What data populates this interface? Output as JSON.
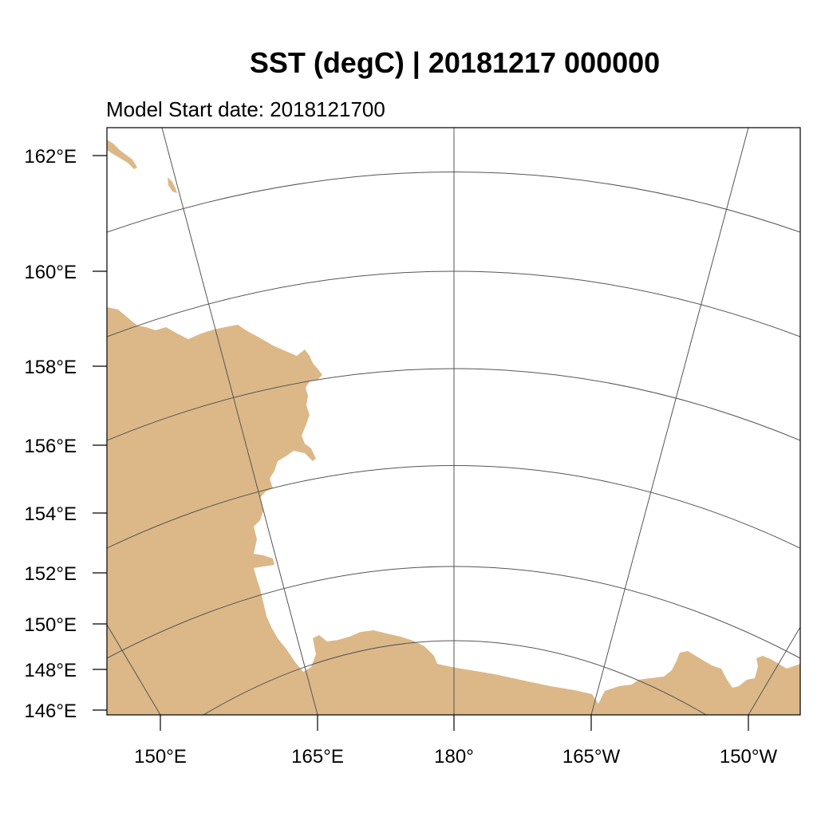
{
  "map": {
    "title": "SST (degC) | 20181217 000000",
    "subtitle": "Model Start date: 2018121700",
    "colors": {
      "land": "#dcb888",
      "ocean": "#ffffff",
      "grid": "#555555",
      "frame": "#000000"
    },
    "left_axis_labels": [
      "162°E",
      "160°E",
      "158°E",
      "156°E",
      "154°E",
      "152°E",
      "150°E",
      "148°E",
      "146°E"
    ],
    "bottom_axis_labels": [
      "150°E",
      "165°E",
      "180°",
      "165°W",
      "150°W"
    ]
  }
}
